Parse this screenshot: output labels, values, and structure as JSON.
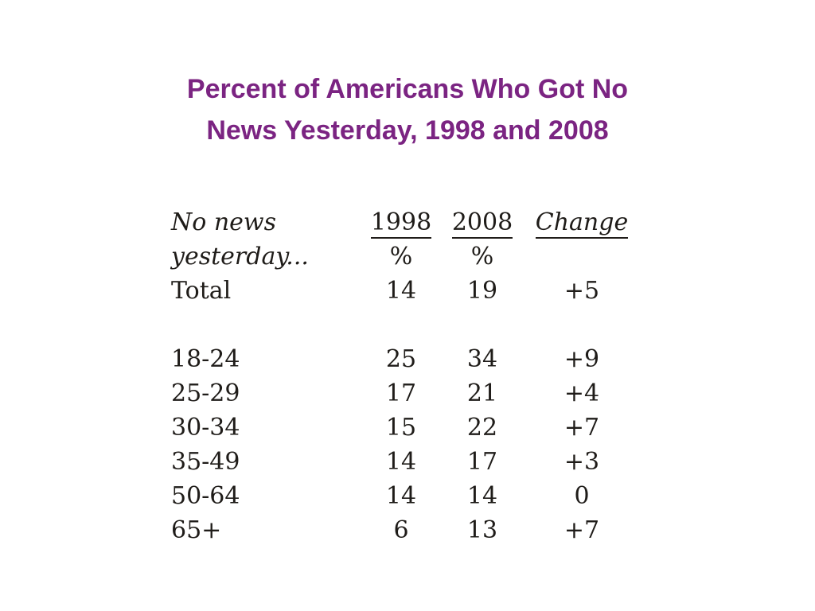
{
  "slide": {
    "title_line1": "Percent of Americans Who Got No",
    "title_line2": "News Yesterday, 1998 and 2008"
  },
  "colors": {
    "title": "#7b2482",
    "table_text": "#1f1c19",
    "background": "#ffffff"
  },
  "chart_data": {
    "type": "table",
    "title": "Percent of Americans Who Got No News Yesterday, 1998 and 2008",
    "header": {
      "label_line1": "No news",
      "label_line2": "yesterday...",
      "col_1998": "1998",
      "col_2008": "2008",
      "col_change": "Change",
      "percent_sign_1998": "%",
      "percent_sign_2008": "%"
    },
    "columns": [
      "No news yesterday...",
      "1998 %",
      "2008 %",
      "Change"
    ],
    "rows": [
      {
        "label": "Total",
        "v1998": "14",
        "v2008": "19",
        "change": "+5"
      },
      {
        "label": "18-24",
        "v1998": "25",
        "v2008": "34",
        "change": "+9"
      },
      {
        "label": "25-29",
        "v1998": "17",
        "v2008": "21",
        "change": "+4"
      },
      {
        "label": "30-34",
        "v1998": "15",
        "v2008": "22",
        "change": "+7"
      },
      {
        "label": "35-49",
        "v1998": "14",
        "v2008": "17",
        "change": "+3"
      },
      {
        "label": "50-64",
        "v1998": "14",
        "v2008": "14",
        "change": "0"
      },
      {
        "label": "65+",
        "v1998": "6",
        "v2008": "13",
        "change": "+7"
      }
    ]
  }
}
